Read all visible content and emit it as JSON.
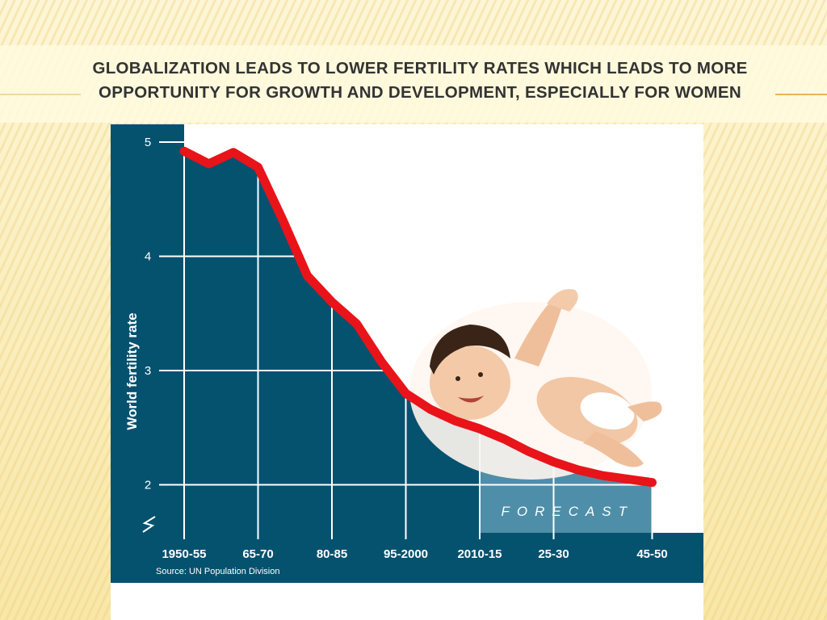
{
  "slide": {
    "title": "Globalization leads to lower fertility rates which leads to more opportunity for growth and development, especially for women"
  },
  "colors": {
    "navy": "#05526f",
    "forecast_fill": "#4f8ea8",
    "line": "#e8141a",
    "grid": "#ffffff"
  },
  "chart_data": {
    "type": "area",
    "ylabel": "World fertility rate",
    "xlabel": "",
    "ylim": [
      1.6,
      5.15
    ],
    "yticks": [
      2,
      3,
      4,
      5
    ],
    "axis_break": true,
    "x_categories": [
      "1950-55",
      "65-70",
      "80-85",
      "95-2000",
      "2010-15",
      "25-30",
      "45-50"
    ],
    "forecast_label": "FORECAST",
    "forecast_from_index": 12,
    "source": "Source: UN Population Division",
    "series": [
      {
        "values": [
          {
            "x": "1950-55",
            "y": 4.92
          },
          {
            "x": "1955-60",
            "y": 4.81
          },
          {
            "x": "1960-65",
            "y": 4.91
          },
          {
            "x": "1965-70",
            "y": 4.78
          },
          {
            "x": "1970-75",
            "y": 4.32
          },
          {
            "x": "1975-80",
            "y": 3.83
          },
          {
            "x": "1980-85",
            "y": 3.6
          },
          {
            "x": "1985-90",
            "y": 3.41
          },
          {
            "x": "1990-95",
            "y": 3.08
          },
          {
            "x": "1995-2000",
            "y": 2.8
          },
          {
            "x": "2000-05",
            "y": 2.66
          },
          {
            "x": "2005-10",
            "y": 2.56
          },
          {
            "x": "2010-15",
            "y": 2.49
          },
          {
            "x": "2015-20",
            "y": 2.4
          },
          {
            "x": "2020-25",
            "y": 2.29
          },
          {
            "x": "2025-30",
            "y": 2.2
          },
          {
            "x": "2030-35",
            "y": 2.13
          },
          {
            "x": "2035-40",
            "y": 2.08
          },
          {
            "x": "2040-45",
            "y": 2.05
          },
          {
            "x": "2045-50",
            "y": 2.02
          }
        ]
      }
    ]
  }
}
